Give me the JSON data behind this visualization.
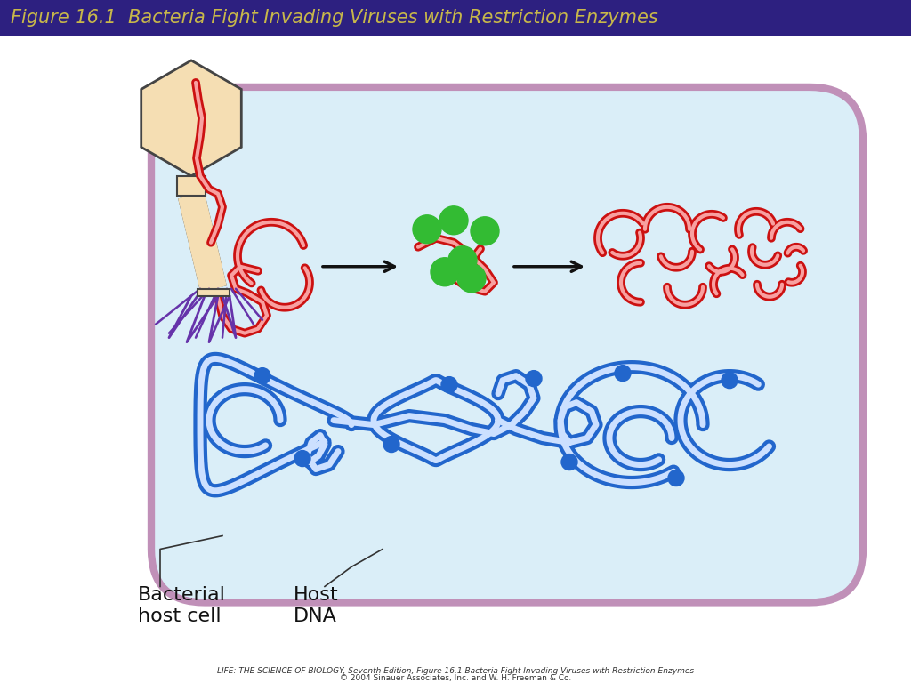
{
  "title": "Figure 16.1  Bacteria Fight Invading Viruses with Restriction Enzymes",
  "title_bg": "#2d2080",
  "title_color": "#c8b84a",
  "title_fontsize": 14,
  "footer_line1": "LIFE: THE SCIENCE OF BIOLOGY, Seventh Edition, Figure 16.1 Bacteria Fight Invading Viruses with Restriction Enzymes",
  "footer_line2": "© 2004 Sinauer Associates, Inc. and W. H. Freeman & Co.",
  "footer_fontsize": 7,
  "label_bacterial": "Bacterial\nhost cell",
  "label_dna": "Host\nDNA",
  "cell_fill": "#daeef8",
  "cell_edge": "#c090b8",
  "cell_edge_width": 6,
  "phage_head_color": "#f5deb3",
  "phage_head_edge": "#444444",
  "phage_legs_color": "#6633aa",
  "dna_red_color": "#cc1111",
  "dna_red_inner": "#f8a0a0",
  "chromosome_color": "#2266cc",
  "chromosome_inner": "#cce0ff",
  "enzyme_color": "#33bb33",
  "arrow_color": "#111111",
  "bg_color": "#ffffff"
}
